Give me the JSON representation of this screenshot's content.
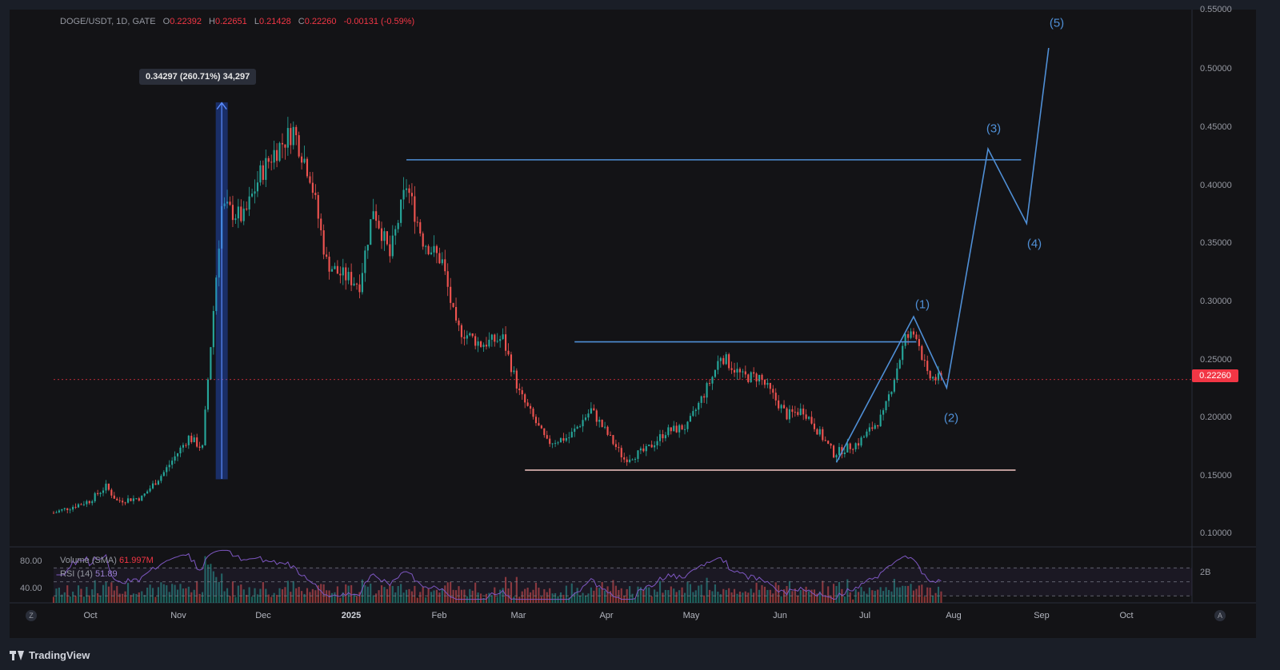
{
  "legend": {
    "symbol": "DOGE/USDT, 1D, GATE",
    "open_label": "O",
    "open": "0.22392",
    "high_label": "H",
    "high": "0.22651",
    "low_label": "L",
    "low": "0.21428",
    "close_label": "C",
    "close": "0.22260",
    "change": "-0.00131 (-0.59%)"
  },
  "measure_tooltip": "0.34297 (260.71%) 34,297",
  "current_price_tag": "0.22260",
  "volume_label": {
    "name": "Volume (SMA)",
    "value": "61.997M"
  },
  "rsi_label": {
    "name": "RSI (14)",
    "value": "51.89"
  },
  "rsi_ticks": [
    "80.00",
    "40.00"
  ],
  "volume_tick": "2B",
  "branding": "TradingView",
  "corner_buttons": {
    "left": "Z",
    "right": "A"
  },
  "wave_labels": [
    "(1)",
    "(2)",
    "(3)",
    "(4)",
    "(5)"
  ],
  "colors": {
    "up": "#26a69a",
    "down": "#ef5350",
    "annotation": "#4f8fd6",
    "support": "#f4c7c3",
    "rsi": "#7e57c2",
    "price_tag": "#f23645"
  },
  "chart_data": {
    "type": "candlestick",
    "interval": "1D",
    "y_scale": "linear",
    "ylim": [
      0.07,
      0.56
    ],
    "y_ticks": [
      "0.55000",
      "0.50000",
      "0.45000",
      "0.40000",
      "0.35000",
      "0.30000",
      "0.25000",
      "0.20000",
      "0.15000",
      "0.10000"
    ],
    "x_ticks": [
      "Oct",
      "Nov",
      "Dec",
      "2025",
      "Feb",
      "Mar",
      "Apr",
      "May",
      "Jun",
      "Jul",
      "Aug",
      "Sep",
      "Oct"
    ],
    "x_tick_dates": [
      "2024-10-01",
      "2024-11-01",
      "2024-12-01",
      "2025-01-01",
      "2025-02-01",
      "2025-03-01",
      "2025-04-01",
      "2025-05-01",
      "2025-06-01",
      "2025-07-01",
      "2025-08-01",
      "2025-09-01",
      "2025-10-01"
    ],
    "x_range": [
      "2024-09-12",
      "2025-10-30"
    ],
    "price_anchors": [
      {
        "date": "2024-09-12",
        "price": 0.101
      },
      {
        "date": "2024-09-25",
        "price": 0.112
      },
      {
        "date": "2024-10-01",
        "price": 0.125
      },
      {
        "date": "2024-10-05",
        "price": 0.112
      },
      {
        "date": "2024-10-14",
        "price": 0.115
      },
      {
        "date": "2024-10-22",
        "price": 0.138
      },
      {
        "date": "2024-10-31",
        "price": 0.17
      },
      {
        "date": "2024-11-05",
        "price": 0.16
      },
      {
        "date": "2024-11-12",
        "price": 0.38
      },
      {
        "date": "2024-11-20",
        "price": 0.37
      },
      {
        "date": "2024-11-26",
        "price": 0.41
      },
      {
        "date": "2024-12-01",
        "price": 0.43
      },
      {
        "date": "2024-12-08",
        "price": 0.45
      },
      {
        "date": "2024-12-14",
        "price": 0.41
      },
      {
        "date": "2024-12-20",
        "price": 0.33
      },
      {
        "date": "2024-12-24",
        "price": 0.32
      },
      {
        "date": "2025-01-01",
        "price": 0.31
      },
      {
        "date": "2025-01-06",
        "price": 0.38
      },
      {
        "date": "2025-01-12",
        "price": 0.335
      },
      {
        "date": "2025-01-18",
        "price": 0.4
      },
      {
        "date": "2025-01-24",
        "price": 0.35
      },
      {
        "date": "2025-01-31",
        "price": 0.33
      },
      {
        "date": "2025-02-05",
        "price": 0.27
      },
      {
        "date": "2025-02-14",
        "price": 0.255
      },
      {
        "date": "2025-02-22",
        "price": 0.26
      },
      {
        "date": "2025-02-28",
        "price": 0.21
      },
      {
        "date": "2025-03-10",
        "price": 0.165
      },
      {
        "date": "2025-03-18",
        "price": 0.17
      },
      {
        "date": "2025-03-26",
        "price": 0.195
      },
      {
        "date": "2025-04-07",
        "price": 0.15
      },
      {
        "date": "2025-04-15",
        "price": 0.158
      },
      {
        "date": "2025-04-22",
        "price": 0.175
      },
      {
        "date": "2025-04-30",
        "price": 0.18
      },
      {
        "date": "2025-05-09",
        "price": 0.225
      },
      {
        "date": "2025-05-12",
        "price": 0.245
      },
      {
        "date": "2025-05-20",
        "price": 0.225
      },
      {
        "date": "2025-05-26",
        "price": 0.225
      },
      {
        "date": "2025-06-05",
        "price": 0.19
      },
      {
        "date": "2025-06-11",
        "price": 0.195
      },
      {
        "date": "2025-06-22",
        "price": 0.155
      },
      {
        "date": "2025-07-01",
        "price": 0.165
      },
      {
        "date": "2025-07-10",
        "price": 0.19
      },
      {
        "date": "2025-07-18",
        "price": 0.26
      },
      {
        "date": "2025-07-22",
        "price": 0.265
      },
      {
        "date": "2025-07-26",
        "price": 0.225
      },
      {
        "date": "2025-07-31",
        "price": 0.2226
      }
    ],
    "current_price": 0.2226,
    "horizontal_levels": [
      {
        "price": 0.423,
        "from": "2025-01-18",
        "to": "2025-08-29",
        "color": "#4f8fd6"
      },
      {
        "price": 0.257,
        "from": "2025-03-20",
        "to": "2025-07-22",
        "color": "#4f8fd6"
      },
      {
        "price": 0.14,
        "from": "2025-03-02",
        "to": "2025-08-27",
        "color": "#f4c7c3"
      }
    ],
    "measure": {
      "from_date": "2024-11-12",
      "from_price": 0.132,
      "to_price": 0.475
    },
    "wave_projection": [
      {
        "label": "",
        "date": "2025-06-23",
        "price": 0.147
      },
      {
        "label": "(1)",
        "date": "2025-07-21",
        "price": 0.28
      },
      {
        "label": "(2)",
        "date": "2025-08-02",
        "price": 0.215
      },
      {
        "label": "(3)",
        "date": "2025-08-17",
        "price": 0.433
      },
      {
        "label": "(4)",
        "date": "2025-08-31",
        "price": 0.365
      },
      {
        "label": "(5)",
        "date": "2025-09-08",
        "price": 0.525
      }
    ],
    "rsi": {
      "ylim": [
        20,
        100
      ],
      "levels": [
        70,
        50,
        30
      ]
    }
  }
}
